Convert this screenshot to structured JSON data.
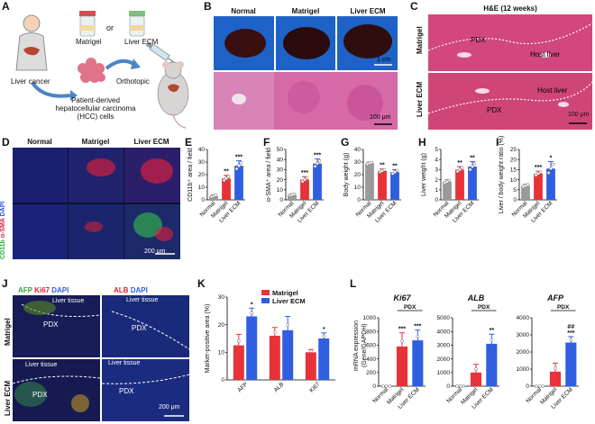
{
  "panels": {
    "A": {
      "letter": "A",
      "liver_cancer": "Liver cancer",
      "matrigel": "Matrigel",
      "or": "or",
      "liver_ecm": "Liver ECM",
      "orthotopic": "Orthotopic",
      "pdx_line1": "Patient-derived",
      "pdx_line2": "hepatocellular carcinoma",
      "pdx_line3": "(HCC) cells"
    },
    "B": {
      "letter": "B",
      "cols": [
        "Normal",
        "Matrigel",
        "Liver ECM"
      ],
      "scale_top": "1 cm",
      "scale_bottom": "100 μm"
    },
    "C": {
      "letter": "C",
      "title": "H&E (12 weeks)",
      "rows": [
        "Matrigel",
        "Liver ECM"
      ],
      "labels_top": [
        "PDX",
        "Host liver"
      ],
      "labels_bottom": [
        "Host liver",
        "PDX"
      ],
      "scale": "100 μm"
    },
    "D": {
      "letter": "D",
      "cols": [
        "Normal",
        "Matrigel",
        "Liver ECM"
      ],
      "row1_parts": [
        "CD11b",
        "α-SMA",
        "DAPI"
      ],
      "scale": "200 μm"
    },
    "J": {
      "letter": "J",
      "head_left": [
        "AFP",
        "Ki67",
        "DAPI"
      ],
      "head_right": [
        "ALB",
        "DAPI"
      ],
      "rows": [
        "Matrigel",
        "Liver ECM"
      ],
      "tissue_labels": [
        "PDX",
        "Liver tissue",
        "PDX",
        "Liver tissue",
        "Liver tissue",
        "Liver tissue",
        "PDX",
        "PDX"
      ],
      "scale": "200 μm"
    },
    "E": {
      "letter": "E"
    },
    "F": {
      "letter": "F"
    },
    "G": {
      "letter": "G"
    },
    "H": {
      "letter": "H"
    },
    "I": {
      "letter": "I"
    },
    "K": {
      "letter": "K"
    },
    "L": {
      "letter": "L",
      "ylabel_l1": "mRNA expression",
      "ylabel_l2": "(Gene/GAPDH)"
    }
  },
  "colors": {
    "normal": "#9a9a9a",
    "matrigel": "#e8323a",
    "liver_ecm": "#2f5fe0"
  },
  "chart_data": [
    {
      "id": "E",
      "type": "bar",
      "categories": [
        "Normal",
        "Matrigel",
        "Liver ECM"
      ],
      "values": [
        3,
        17,
        27
      ],
      "errors": [
        1,
        2.5,
        4
      ],
      "ylabel": "CD11b⁺ area / field",
      "ylim": [
        0,
        40
      ],
      "yticks": [
        0,
        10,
        20,
        30,
        40
      ],
      "sig": [
        "",
        "**",
        "***"
      ]
    },
    {
      "id": "F",
      "type": "bar",
      "categories": [
        "Normal",
        "Matrigel",
        "Liver ECM"
      ],
      "values": [
        5,
        20,
        36
      ],
      "errors": [
        1,
        3,
        4.5
      ],
      "ylabel": "α-SMA⁺ area / field",
      "ylim": [
        0,
        50
      ],
      "yticks": [
        0,
        10,
        20,
        30,
        40,
        50
      ],
      "sig": [
        "",
        "***",
        "***"
      ]
    },
    {
      "id": "G",
      "type": "bar",
      "categories": [
        "Normal",
        "Matrigel",
        "Liver ECM"
      ],
      "values": [
        29,
        23,
        22
      ],
      "errors": [
        1,
        1.5,
        2
      ],
      "ylabel": "Body weight (g)",
      "ylim": [
        0,
        40
      ],
      "yticks": [
        0,
        10,
        20,
        30,
        40
      ],
      "sig": [
        "",
        "**",
        "**"
      ]
    },
    {
      "id": "H",
      "type": "bar",
      "categories": [
        "Normal",
        "Matrigel",
        "Liver ECM"
      ],
      "values": [
        1.8,
        3.0,
        3.3
      ],
      "errors": [
        0.2,
        0.3,
        0.5
      ],
      "ylabel": "Liver weight (g)",
      "ylim": [
        0,
        5
      ],
      "yticks": [
        0,
        1,
        2,
        3,
        4,
        5
      ],
      "sig": [
        "",
        "**",
        "**"
      ]
    },
    {
      "id": "I",
      "type": "bar",
      "categories": [
        "Normal",
        "Matrigel",
        "Liver ECM"
      ],
      "values": [
        7,
        13,
        15.5
      ],
      "errors": [
        0.8,
        1.2,
        3.5
      ],
      "ylabel": "Liver / body weight ratio (%)",
      "ylim": [
        0,
        25
      ],
      "yticks": [
        0,
        5,
        10,
        15,
        20,
        25
      ],
      "sig": [
        "",
        "***",
        "*"
      ]
    },
    {
      "id": "K",
      "type": "bar",
      "categories": [
        "AFP",
        "ALB",
        "Ki67"
      ],
      "series": [
        {
          "name": "Matrigel",
          "values": [
            12.5,
            16,
            10
          ],
          "errors": [
            4,
            3,
            1
          ]
        },
        {
          "name": "Liver ECM",
          "values": [
            23,
            18,
            15
          ],
          "errors": [
            3,
            5,
            2
          ]
        }
      ],
      "ylabel": "Marker-positive area (%)",
      "ylim": [
        0,
        30
      ],
      "yticks": [
        0,
        10,
        20,
        30
      ],
      "sig": [
        "*",
        "",
        "*"
      ]
    },
    {
      "id": "L1",
      "type": "bar",
      "title": "Ki67",
      "categories": [
        "Normal",
        "Matrigel",
        "Liver ECM"
      ],
      "values": [
        0,
        580,
        670
      ],
      "errors": [
        0,
        200,
        150
      ],
      "ylim": [
        0,
        1000
      ],
      "yticks": [
        0,
        200,
        400,
        600,
        800,
        1000
      ],
      "sig": [
        "",
        "***",
        "***"
      ],
      "bracket": "PDX"
    },
    {
      "id": "L2",
      "type": "bar",
      "title": "ALB",
      "categories": [
        "Normal",
        "Matrigel",
        "Liver ECM"
      ],
      "values": [
        0,
        1000,
        3100
      ],
      "errors": [
        0,
        600,
        700
      ],
      "ylim": [
        0,
        5000
      ],
      "yticks": [
        0,
        1000,
        2000,
        3000,
        4000,
        5000
      ],
      "sig": [
        "",
        "",
        "**"
      ],
      "bracket": "PDX"
    },
    {
      "id": "L3",
      "type": "bar",
      "title": "AFP",
      "categories": [
        "Normal",
        "Matrigel",
        "Liver ECM"
      ],
      "values": [
        0,
        850,
        2550
      ],
      "errors": [
        0,
        500,
        350
      ],
      "ylim": [
        0,
        4000
      ],
      "yticks": [
        0,
        1000,
        2000,
        3000,
        4000
      ],
      "sig": [
        "",
        "",
        "##\n***"
      ],
      "bracket": "PDX"
    }
  ]
}
